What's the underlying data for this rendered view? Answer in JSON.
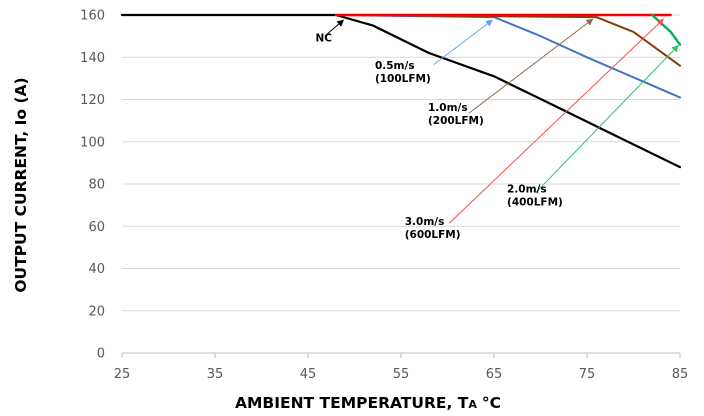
{
  "chart_data": {
    "type": "line",
    "xlabel_main": "AMBIENT TEMPERATURE, T",
    "xlabel_sub": "A",
    "xlabel_unit": "°C",
    "ylabel": "OUTPUT CURRENT, Io (A)",
    "xlim": [
      25,
      85
    ],
    "ylim": [
      0,
      160
    ],
    "xticks": [
      25,
      35,
      45,
      55,
      65,
      75,
      85
    ],
    "yticks": [
      0,
      20,
      40,
      60,
      80,
      100,
      120,
      140,
      160
    ],
    "grid": "horizontal",
    "series": [
      {
        "name": "NC",
        "color": "#000000",
        "width": 2.2,
        "points": [
          [
            25,
            160
          ],
          [
            48,
            160
          ],
          [
            52,
            155
          ],
          [
            58,
            142
          ],
          [
            65,
            131
          ],
          [
            72,
            116
          ],
          [
            78,
            103
          ],
          [
            85,
            88
          ]
        ]
      },
      {
        "name": "0.5m/s (100LFM)",
        "color": "#4472C4",
        "width": 2,
        "points": [
          [
            48,
            160
          ],
          [
            65,
            159
          ],
          [
            70,
            150
          ],
          [
            75,
            140
          ],
          [
            85,
            121
          ]
        ]
      },
      {
        "name": "1.0m/s (200LFM)",
        "color": "#843C0C",
        "width": 2,
        "points": [
          [
            48,
            160
          ],
          [
            76,
            159
          ],
          [
            80,
            152
          ],
          [
            85,
            136
          ]
        ]
      },
      {
        "name": "3.0m/s (600LFM)",
        "color": "#FF0000",
        "width": 2.4,
        "points": [
          [
            48,
            160
          ],
          [
            84,
            160
          ]
        ]
      },
      {
        "name": "2.0m/s (400LFM)",
        "color": "#00B050",
        "width": 2.4,
        "points": [
          [
            82,
            160
          ],
          [
            84,
            152
          ],
          [
            85,
            146
          ]
        ]
      }
    ],
    "annotations": [
      {
        "id": "nc",
        "lines": [
          "NC"
        ],
        "pos": [
          45.8,
          147.5
        ],
        "tip": [
          48.8,
          157.5
        ],
        "line_from": [
          46.8,
          150
        ],
        "color": "#000000"
      },
      {
        "id": "05ms",
        "lines": [
          "0.5m/s",
          "(100LFM)"
        ],
        "pos": [
          52.2,
          134.5
        ],
        "tip": [
          64.8,
          157.5
        ],
        "line_from": [
          58.5,
          136.5
        ],
        "color": "#6FA0E8"
      },
      {
        "id": "10ms",
        "lines": [
          "1.0m/s",
          "(200LFM)"
        ],
        "pos": [
          57.9,
          114.5
        ],
        "tip": [
          75.6,
          158
        ],
        "line_from": [
          62.3,
          113.5
        ],
        "color": "#8B6B4A"
      },
      {
        "id": "30ms",
        "lines": [
          "3.0m/s",
          "(600LFM)"
        ],
        "pos": [
          55.4,
          60.5
        ],
        "tip": [
          83.2,
          158
        ],
        "line_from": [
          60.2,
          61.5
        ],
        "color": "#FF4B4B"
      },
      {
        "id": "20ms",
        "lines": [
          "2.0m/s",
          "(400LFM)"
        ],
        "pos": [
          66.4,
          76
        ],
        "tip": [
          84.8,
          145.5
        ],
        "line_from": [
          69.5,
          76
        ],
        "color": "#2CC46A"
      }
    ]
  }
}
